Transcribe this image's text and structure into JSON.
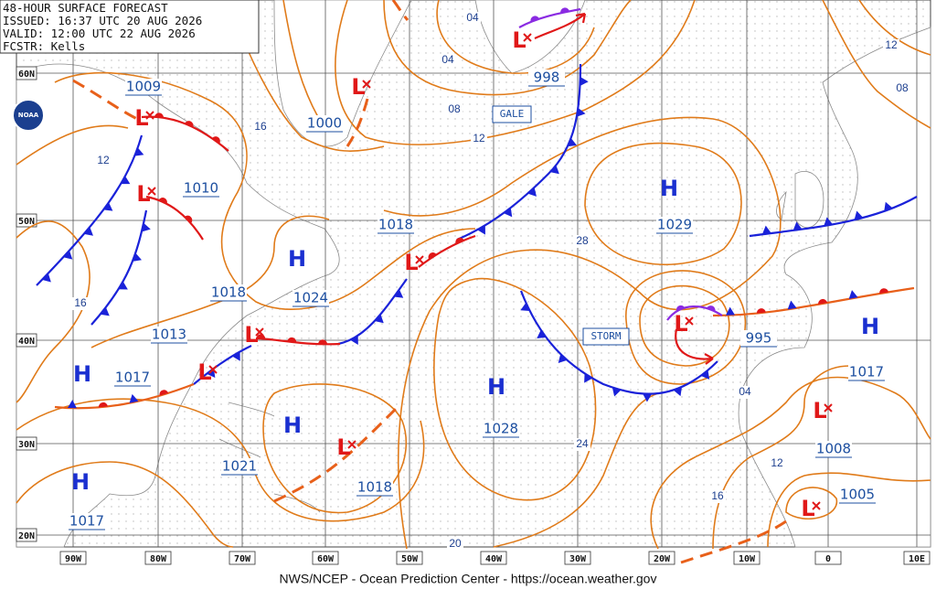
{
  "header": {
    "title": "48-HOUR SURFACE FORECAST",
    "issued": "ISSUED: 16:37 UTC 20 AUG 2026",
    "valid": "VALID: 12:00 UTC 22 AUG 2026",
    "forecaster": "FCSTR: Kells"
  },
  "logo": "NOAA",
  "latitude_labels": [
    "60N",
    "50N",
    "40N",
    "30N",
    "20N"
  ],
  "longitude_labels": [
    "90W",
    "80W",
    "70W",
    "60W",
    "50W",
    "40W",
    "30W",
    "20W",
    "10W",
    "0",
    "10E"
  ],
  "centers": [
    {
      "symbol": "L",
      "pressure": 1009
    },
    {
      "symbol": "L",
      "pressure": 1000
    },
    {
      "symbol": "L",
      "pressure": 1010
    },
    {
      "symbol": "L",
      "pressure": 998
    },
    {
      "symbol": "L",
      "pressure": 1018
    },
    {
      "symbol": "H",
      "pressure": 1024
    },
    {
      "symbol": "H",
      "pressure": 1029
    },
    {
      "symbol": "H",
      "pressure": 1017
    },
    {
      "symbol": "H",
      "pressure": 1017
    },
    {
      "symbol": "H",
      "pressure": 1021
    },
    {
      "symbol": "L",
      "pressure": 1018
    },
    {
      "symbol": "H",
      "pressure": 1028
    },
    {
      "symbol": "L",
      "pressure": 995
    },
    {
      "symbol": "H",
      "pressure": 1017
    },
    {
      "symbol": "L",
      "pressure": 1008
    },
    {
      "symbol": "L",
      "pressure": 1005
    },
    {
      "symbol": "L"
    },
    {
      "symbol": "L"
    }
  ],
  "pressure_labels": [
    1018,
    1013
  ],
  "isobar_labels": [
    "04",
    "04",
    "08",
    "12",
    "16",
    "12",
    "16",
    "12",
    "08",
    "28",
    "24",
    "20",
    "04",
    "12",
    "16"
  ],
  "warnings": [
    "GALE",
    "STORM"
  ],
  "footer": "NWS/NCEP - Ocean Prediction Center - https://ocean.weather.gov"
}
